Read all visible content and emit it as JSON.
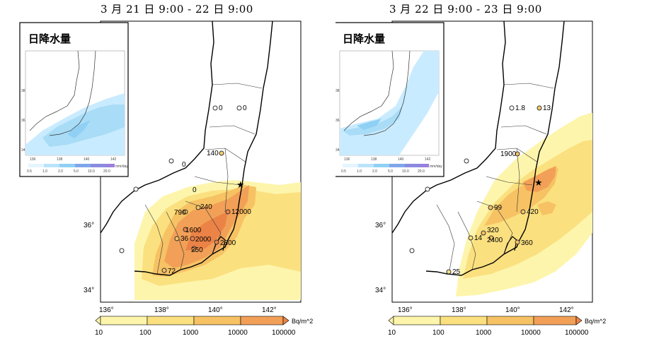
{
  "panels": [
    {
      "title": "3 月 21 日 9:00 - 22 日 9:00",
      "inset": {
        "title": "日降水量",
        "lon_ticks": [
          "136",
          "138",
          "140",
          "142"
        ],
        "lat_ticks": [
          "38",
          "36",
          "34"
        ],
        "scale_ticks": [
          "0.5",
          "1.0",
          "2.0",
          "5.0",
          "10.0",
          "20.0"
        ],
        "unit": "mm/day"
      },
      "lat_ticks": [
        "36°",
        "34°"
      ],
      "lon_ticks": [
        "136°",
        "138°",
        "140°",
        "142°"
      ],
      "stations": [
        "0",
        "0",
        "140",
        "0",
        "0",
        "790",
        "240",
        "12000",
        "1600",
        "36",
        "2000",
        "250",
        "2800",
        "72"
      ],
      "colorbar": {
        "labels": [
          "10",
          "100",
          "1000",
          "10000",
          "100000"
        ],
        "unit": "Bq/m^2"
      }
    },
    {
      "title": "3 月 22 日 9:00 - 23 日 9:00",
      "inset": {
        "title": "日降水量",
        "lon_ticks": [
          "136",
          "138",
          "140",
          "142"
        ],
        "lat_ticks": [
          "38",
          "36",
          "34"
        ],
        "scale_ticks": [
          "0.5",
          "1.0",
          "2.0",
          "5.0",
          "10.0",
          "20.0"
        ],
        "unit": "mm/day"
      },
      "lat_ticks": [
        "36°",
        "34°"
      ],
      "lon_ticks": [
        "136°",
        "138°",
        "140°",
        "142°"
      ],
      "stations": [
        "1.8",
        "13",
        "1900",
        "99",
        "420",
        "320",
        "14",
        "2400",
        "360",
        "25"
      ],
      "colorbar": {
        "labels": [
          "10",
          "100",
          "1000",
          "10000",
          "100000"
        ],
        "unit": "Bq/m^2"
      }
    }
  ],
  "colors": {
    "scale": [
      "#fdf5ac",
      "#fbe07f",
      "#f6c264",
      "#f2a057",
      "#eb8347"
    ],
    "rain": [
      "#d6f0ff",
      "#a9dcf6",
      "#7fc6ef"
    ],
    "land": "#ffffff",
    "coast": "#000000"
  }
}
